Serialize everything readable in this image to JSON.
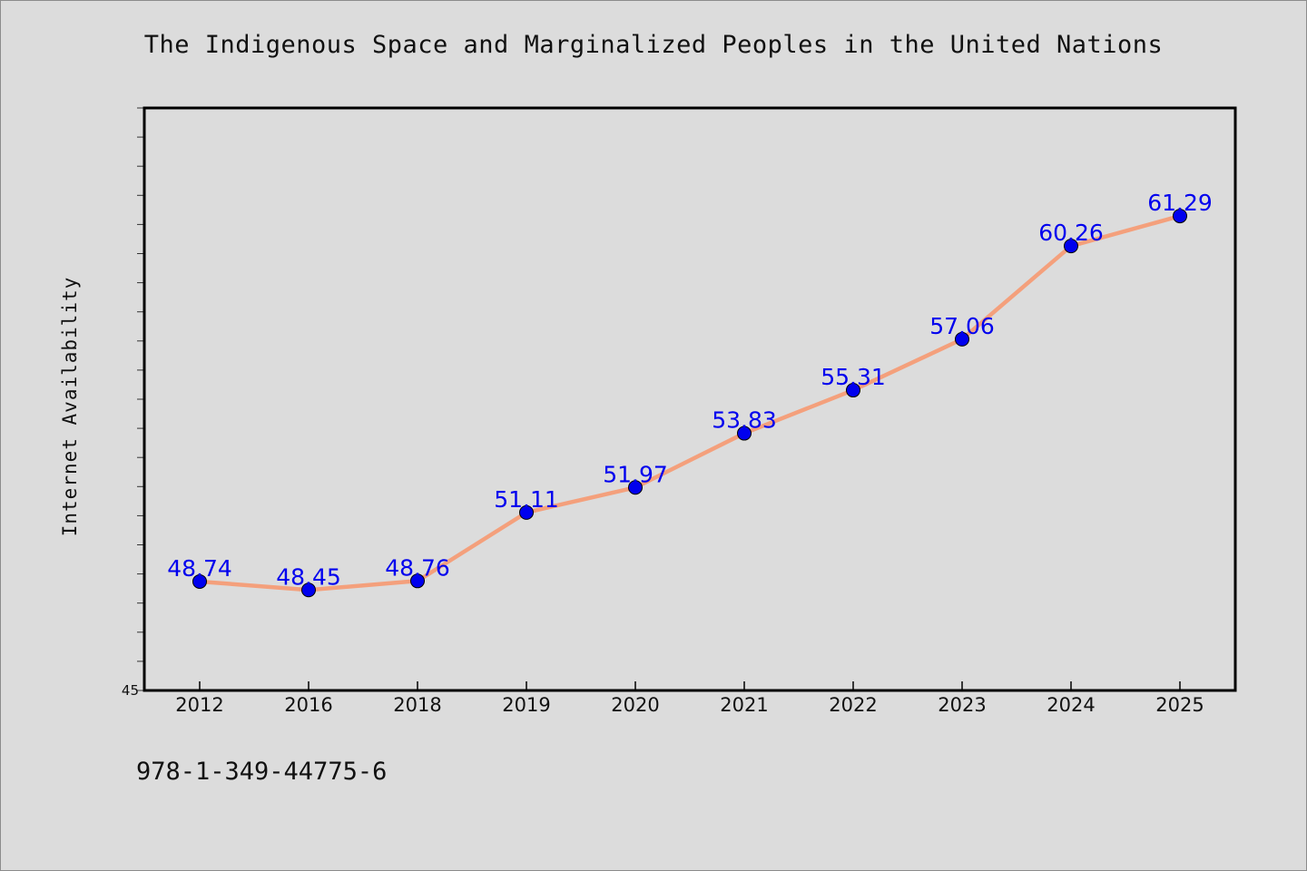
{
  "chart_data": {
    "type": "line",
    "title": "The Indigenous Space and Marginalized Peoples in the United Nations",
    "xlabel": "",
    "ylabel": "Internet Availability",
    "categories": [
      "2012",
      "2016",
      "2018",
      "2019",
      "2020",
      "2021",
      "2022",
      "2023",
      "2024",
      "2025"
    ],
    "series": [
      {
        "values": [
          48.74,
          48.45,
          48.76,
          51.11,
          51.97,
          53.83,
          55.31,
          57.06,
          60.26,
          61.29
        ],
        "labels": [
          "48.74",
          "48.45",
          "48.76",
          "51.11",
          "51.97",
          "53.83",
          "55.31",
          "57.06",
          "60.26",
          "61.29"
        ]
      }
    ],
    "ylim": [
      45,
      65
    ],
    "y_tick_labels": [
      "45"
    ],
    "line_color": "#f4a07c",
    "marker_color": "#0000ee",
    "label_color": "#0000ee",
    "grid": false
  },
  "footer": {
    "isbn": "978-1-349-44775-6"
  }
}
